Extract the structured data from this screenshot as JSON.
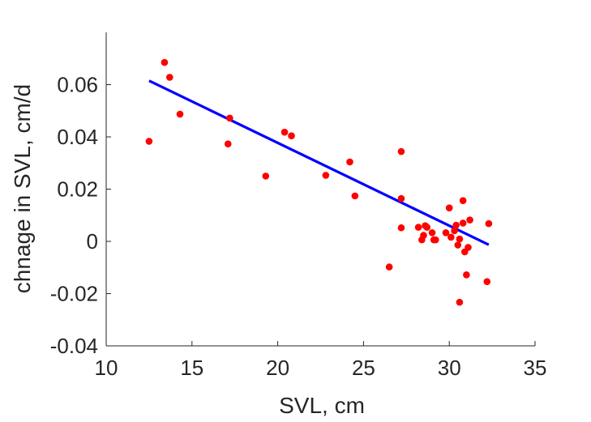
{
  "chart_data": {
    "type": "scatter",
    "xlabel": "SVL, cm",
    "ylabel": "chnage in SVL, cm/d",
    "xlim": [
      10,
      35
    ],
    "ylim": [
      -0.04,
      0.08
    ],
    "xticks": [
      10,
      15,
      20,
      25,
      30,
      35
    ],
    "xtick_labels": [
      "10",
      "15",
      "20",
      "25",
      "30",
      "35"
    ],
    "yticks": [
      -0.04,
      -0.02,
      0,
      0.02,
      0.04,
      0.06
    ],
    "ytick_labels": [
      "-0.04",
      "-0.02",
      "0",
      "0.02",
      "0.04",
      "0.06"
    ],
    "grid": false,
    "box": false,
    "series": [
      {
        "kind": "points",
        "color": "#ff0000",
        "points": [
          [
            12.5,
            0.0383
          ],
          [
            13.4,
            0.0685
          ],
          [
            13.7,
            0.0628
          ],
          [
            14.3,
            0.0487
          ],
          [
            17.1,
            0.0373
          ],
          [
            17.2,
            0.0472
          ],
          [
            19.3,
            0.025
          ],
          [
            20.4,
            0.0418
          ],
          [
            20.8,
            0.0404
          ],
          [
            22.8,
            0.0253
          ],
          [
            24.2,
            0.0304
          ],
          [
            24.5,
            0.0174
          ],
          [
            26.5,
            -0.0098
          ],
          [
            27.2,
            0.0344
          ],
          [
            27.2,
            0.0164
          ],
          [
            27.2,
            0.0052
          ],
          [
            28.2,
            0.0054
          ],
          [
            28.4,
            0.0006
          ],
          [
            28.5,
            0.0023
          ],
          [
            28.6,
            0.006
          ],
          [
            28.7,
            0.0054
          ],
          [
            29.0,
            0.0033
          ],
          [
            29.1,
            0.0006
          ],
          [
            29.2,
            0.0006
          ],
          [
            29.8,
            0.0033
          ],
          [
            30.0,
            0.0128
          ],
          [
            30.1,
            0.0016
          ],
          [
            30.3,
            0.0041
          ],
          [
            30.4,
            0.0062
          ],
          [
            30.5,
            -0.0014
          ],
          [
            30.6,
            -0.0233
          ],
          [
            30.6,
            0.0009
          ],
          [
            30.8,
            0.0156
          ],
          [
            30.8,
            0.007
          ],
          [
            30.9,
            -0.004
          ],
          [
            31.0,
            -0.0128
          ],
          [
            31.1,
            -0.0023
          ],
          [
            31.2,
            0.0082
          ],
          [
            32.2,
            -0.0154
          ],
          [
            32.3,
            0.0068
          ]
        ]
      },
      {
        "kind": "fit-line",
        "color": "#0000ff",
        "points": [
          [
            12.5,
            0.0615
          ],
          [
            32.3,
            -0.0013
          ]
        ]
      }
    ]
  }
}
